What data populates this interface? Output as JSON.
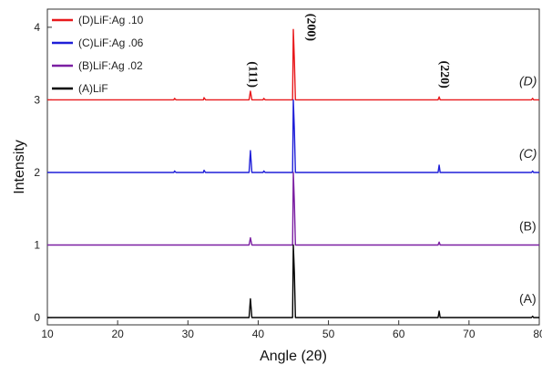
{
  "chart_data": {
    "type": "line",
    "xlabel": "Angle (2θ)",
    "ylabel": "Intensity",
    "xlim": [
      10,
      80
    ],
    "ylim": [
      -0.1,
      4.25
    ],
    "xticks": [
      10,
      20,
      30,
      40,
      50,
      60,
      70,
      80
    ],
    "yticks": [
      0,
      1,
      2,
      3,
      4
    ],
    "grid": false,
    "legend_position": "top-left",
    "legend": [
      "(D)LiF:Ag .10",
      "(C)LiF:Ag .06",
      "(B)LiF:Ag .02",
      "(A)LiF"
    ],
    "peak_labels": [
      {
        "text": "(111)",
        "x": 38.7,
        "y": 3.35
      },
      {
        "text": "(200)",
        "x": 47.0,
        "y": 4.0
      },
      {
        "text": "(220)",
        "x": 66.0,
        "y": 3.35
      }
    ],
    "series": [
      {
        "name": "(D)LiF:Ag .10",
        "label": "(D)",
        "label_italic": true,
        "color": "#e8191c",
        "baseline": 3.0,
        "points": [
          [
            10,
            3.0
          ],
          [
            28.0,
            3.0
          ],
          [
            28.1,
            3.02
          ],
          [
            28.3,
            3.0
          ],
          [
            32.2,
            3.0
          ],
          [
            32.3,
            3.03
          ],
          [
            32.5,
            3.0
          ],
          [
            38.7,
            3.0
          ],
          [
            38.9,
            3.12
          ],
          [
            39.1,
            3.0
          ],
          [
            40.7,
            3.0
          ],
          [
            40.8,
            3.02
          ],
          [
            41.0,
            3.0
          ],
          [
            44.9,
            3.0
          ],
          [
            45.0,
            3.97
          ],
          [
            45.15,
            3.53
          ],
          [
            45.3,
            3.0
          ],
          [
            65.6,
            3.0
          ],
          [
            65.75,
            3.04
          ],
          [
            65.9,
            3.0
          ],
          [
            78.9,
            3.0
          ],
          [
            79.05,
            3.02
          ],
          [
            79.2,
            3.0
          ],
          [
            80,
            3.0
          ]
        ]
      },
      {
        "name": "(C)LiF:Ag .06",
        "label": "(C)",
        "label_italic": true,
        "color": "#1f1fd8",
        "baseline": 2.0,
        "points": [
          [
            10,
            2.0
          ],
          [
            28.0,
            2.0
          ],
          [
            28.1,
            2.02
          ],
          [
            28.3,
            2.0
          ],
          [
            32.2,
            2.0
          ],
          [
            32.3,
            2.03
          ],
          [
            32.5,
            2.0
          ],
          [
            38.7,
            2.0
          ],
          [
            38.9,
            2.3
          ],
          [
            39.1,
            2.0
          ],
          [
            40.7,
            2.0
          ],
          [
            40.8,
            2.02
          ],
          [
            41.0,
            2.0
          ],
          [
            44.9,
            2.0
          ],
          [
            45.0,
            3.0
          ],
          [
            45.15,
            2.57
          ],
          [
            45.3,
            2.0
          ],
          [
            65.6,
            2.0
          ],
          [
            65.75,
            2.1
          ],
          [
            65.9,
            2.0
          ],
          [
            78.9,
            2.0
          ],
          [
            79.05,
            2.02
          ],
          [
            79.2,
            2.0
          ],
          [
            80,
            2.0
          ]
        ]
      },
      {
        "name": "(B)LiF:Ag .02",
        "label": "(B)",
        "label_italic": false,
        "color": "#7b1fa2",
        "baseline": 1.0,
        "points": [
          [
            10,
            1.0
          ],
          [
            38.7,
            1.0
          ],
          [
            38.9,
            1.1
          ],
          [
            39.1,
            1.0
          ],
          [
            44.9,
            1.0
          ],
          [
            45.0,
            2.0
          ],
          [
            45.15,
            1.57
          ],
          [
            45.3,
            1.0
          ],
          [
            65.6,
            1.0
          ],
          [
            65.75,
            1.04
          ],
          [
            65.9,
            1.0
          ],
          [
            80,
            1.0
          ]
        ]
      },
      {
        "name": "(A)LiF",
        "label": "(A)",
        "label_italic": false,
        "color": "#000000",
        "baseline": 0.0,
        "points": [
          [
            10,
            0.0
          ],
          [
            38.7,
            0.0
          ],
          [
            38.9,
            0.26
          ],
          [
            39.1,
            0.0
          ],
          [
            44.9,
            0.0
          ],
          [
            45.0,
            1.0
          ],
          [
            45.15,
            0.6
          ],
          [
            45.3,
            0.0
          ],
          [
            65.6,
            0.0
          ],
          [
            65.75,
            0.09
          ],
          [
            65.9,
            0.0
          ],
          [
            78.9,
            0.0
          ],
          [
            79.05,
            0.02
          ],
          [
            79.2,
            0.0
          ],
          [
            80,
            0.0
          ]
        ]
      }
    ]
  }
}
